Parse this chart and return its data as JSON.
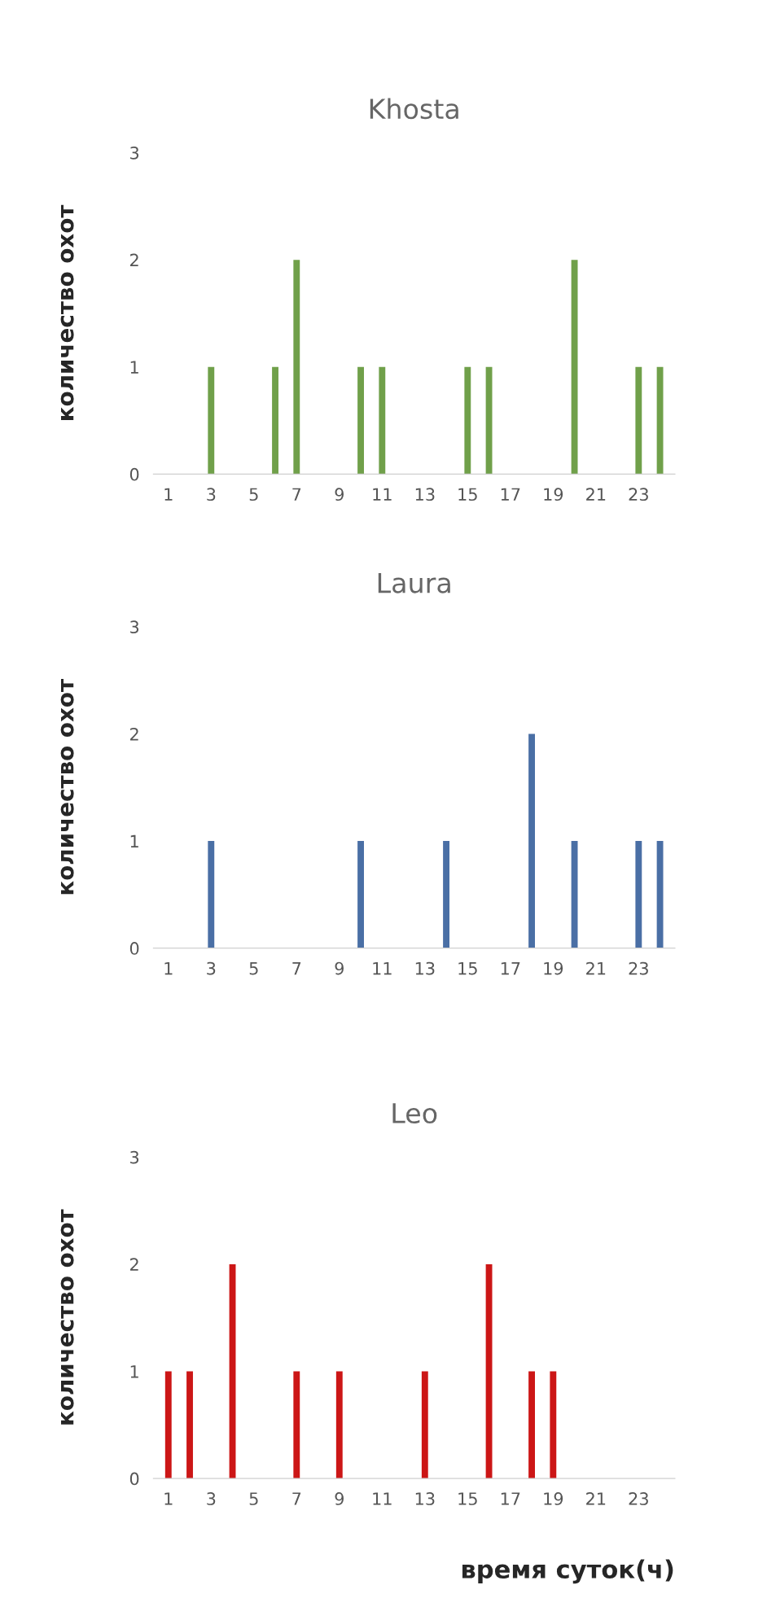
{
  "chart_data": [
    {
      "type": "bar",
      "title": "Khosta",
      "ylabel": "количество охот",
      "categories": [
        "1",
        null,
        "3",
        null,
        "5",
        null,
        "7",
        null,
        "9",
        null,
        "11",
        null,
        "13",
        null,
        "15",
        null,
        "17",
        null,
        "19",
        null,
        "21",
        null,
        "23",
        null
      ],
      "values": [
        0,
        0,
        1,
        0,
        0,
        1,
        2,
        0,
        0,
        1,
        1,
        0,
        0,
        0,
        1,
        1,
        0,
        0,
        0,
        2,
        0,
        0,
        1,
        1
      ],
      "color": "#70a04a",
      "ylim": [
        0,
        3
      ],
      "yticks": [
        0,
        1,
        2,
        3
      ],
      "grid": false
    },
    {
      "type": "bar",
      "title": "Laura",
      "ylabel": "количество охот",
      "categories": [
        "1",
        null,
        "3",
        null,
        "5",
        null,
        "7",
        null,
        "9",
        null,
        "11",
        null,
        "13",
        null,
        "15",
        null,
        "17",
        null,
        "19",
        null,
        "21",
        null,
        "23",
        null
      ],
      "values": [
        0,
        0,
        1,
        0,
        0,
        0,
        0,
        0,
        0,
        1,
        0,
        0,
        0,
        1,
        0,
        0,
        0,
        2,
        0,
        1,
        0,
        0,
        1,
        1
      ],
      "color": "#4a6fa5",
      "ylim": [
        0,
        3
      ],
      "yticks": [
        0,
        1,
        2,
        3
      ],
      "grid": false
    },
    {
      "type": "bar",
      "title": "Leo",
      "ylabel": "количество охот",
      "xlabel": "время суток(ч)",
      "categories": [
        "1",
        null,
        "3",
        null,
        "5",
        null,
        "7",
        null,
        "9",
        null,
        "11",
        null,
        "13",
        null,
        "15",
        null,
        "17",
        null,
        "19",
        null,
        "21",
        null,
        "23",
        null
      ],
      "values": [
        1,
        1,
        0,
        2,
        0,
        0,
        1,
        0,
        1,
        0,
        0,
        0,
        1,
        0,
        0,
        2,
        0,
        1,
        1,
        0,
        0,
        0,
        0,
        0
      ],
      "color": "#cc1616",
      "ylim": [
        0,
        3
      ],
      "yticks": [
        0,
        1,
        2,
        3
      ],
      "grid": false
    }
  ]
}
